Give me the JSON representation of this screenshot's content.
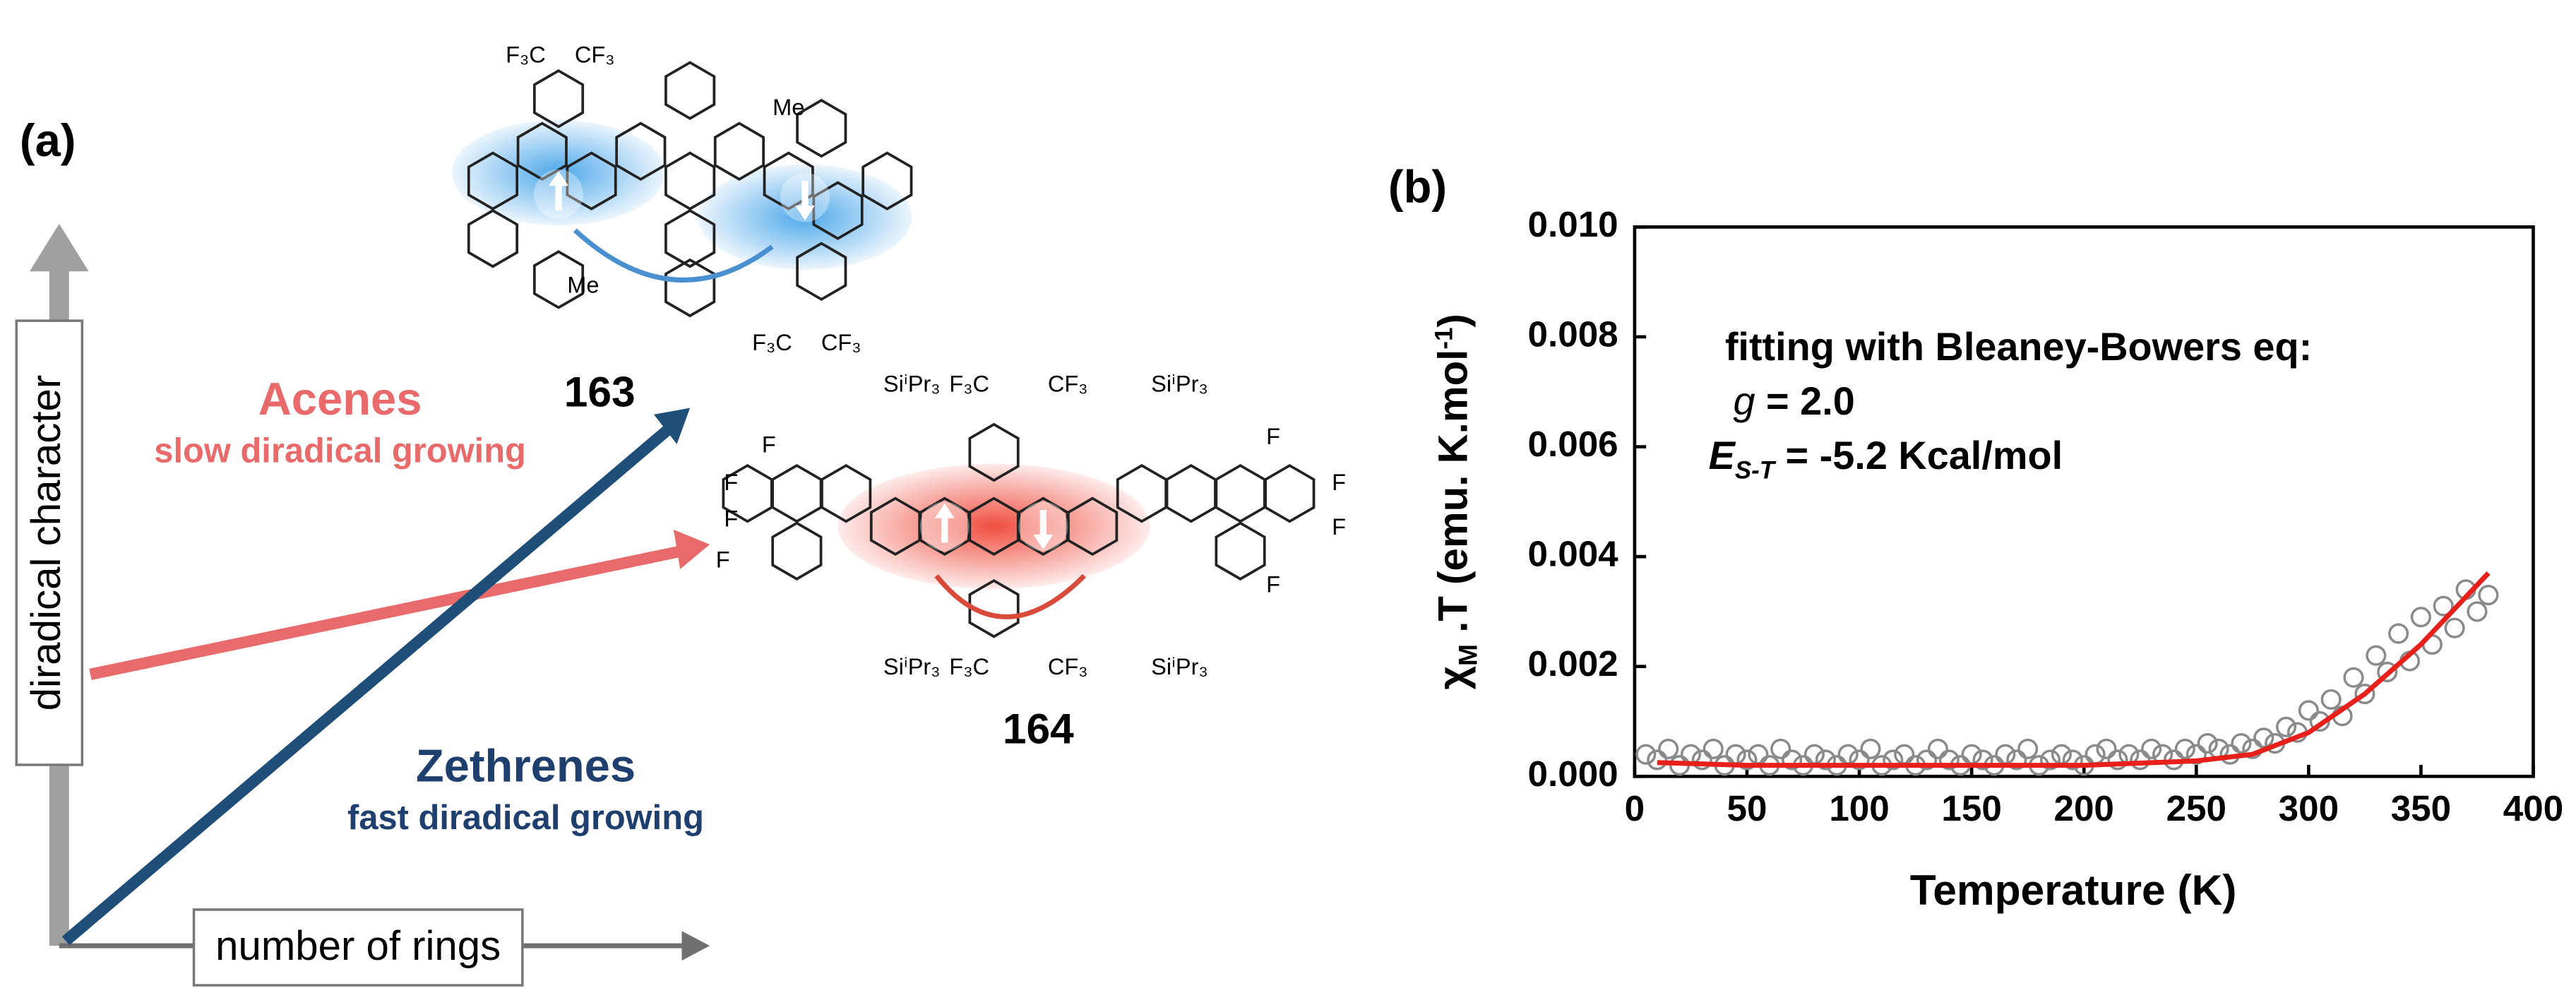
{
  "panel_a": {
    "label": "(a)",
    "y_axis": "diradical character",
    "x_axis": "number of rings",
    "acenes": {
      "title": "Acenes",
      "subtitle": "slow diradical growing"
    },
    "zethrenes": {
      "title": "Zethrenes",
      "subtitle": "fast diradical growing"
    },
    "molecule_163": {
      "number": "163",
      "labels": [
        "F₃C",
        "CF₃",
        "Me",
        "Me",
        "F₃C",
        "CF₃"
      ]
    },
    "molecule_164": {
      "number": "164",
      "labels": [
        "SiⁱPr₃",
        "F₃C",
        "CF₃",
        "SiⁱPr₃",
        "F",
        "F",
        "F",
        "F",
        "F",
        "F",
        "F",
        "F",
        "SiⁱPr₃",
        "F₃C",
        "CF₃",
        "SiⁱPr₃"
      ]
    }
  },
  "panel_b": {
    "label": "(b)",
    "annotation": {
      "line1": "fitting with Bleaney-Bowers eq:",
      "g_symbol": "g",
      "g_value": " = 2.0",
      "e_symbol": "E",
      "e_sub": "S-T",
      "e_value": " = -5.2 Kcal/mol"
    }
  },
  "chart_data": {
    "type": "scatter",
    "xlabel": "Temperature (K)",
    "ylabel": {
      "symbol": "χ",
      "sub": "M",
      "main": " .T (emu. K.mol",
      "sup": "-1",
      "end": ")"
    },
    "xlim": [
      0,
      400
    ],
    "xticks": [
      0,
      50,
      100,
      150,
      200,
      250,
      300,
      350,
      400
    ],
    "ylim": [
      0,
      0.01
    ],
    "yticks": [
      {
        "value": 0,
        "label": "0.000"
      },
      {
        "value": 0.002,
        "label": "0.002"
      },
      {
        "value": 0.004,
        "label": "0.004"
      },
      {
        "value": 0.006,
        "label": "0.006"
      },
      {
        "value": 0.008,
        "label": "0.008"
      },
      {
        "value": 0.01,
        "label": "0.010"
      }
    ],
    "series": [
      {
        "type": "scatter",
        "color": "#8a8a8a",
        "x": [
          5,
          10,
          15,
          20,
          25,
          30,
          35,
          40,
          45,
          50,
          55,
          60,
          65,
          70,
          75,
          80,
          85,
          90,
          95,
          100,
          105,
          110,
          115,
          120,
          125,
          130,
          135,
          140,
          145,
          150,
          155,
          160,
          165,
          170,
          175,
          180,
          185,
          190,
          195,
          200,
          205,
          210,
          215,
          220,
          225,
          230,
          235,
          240,
          245,
          250,
          255,
          260,
          265,
          270,
          275,
          280,
          285,
          290,
          295,
          300,
          305,
          310,
          315,
          320,
          325,
          330,
          335,
          340,
          345,
          350,
          355,
          360,
          365,
          370,
          375,
          380
        ],
        "values": [
          0.0004,
          0.0003,
          0.0005,
          0.0002,
          0.0004,
          0.0003,
          0.0005,
          0.0002,
          0.0004,
          0.0003,
          0.0004,
          0.0002,
          0.0005,
          0.0003,
          0.0002,
          0.0004,
          0.0003,
          0.0002,
          0.0004,
          0.0003,
          0.0005,
          0.0002,
          0.0003,
          0.0004,
          0.0002,
          0.0003,
          0.0005,
          0.0003,
          0.0002,
          0.0004,
          0.0003,
          0.0002,
          0.0004,
          0.0003,
          0.0005,
          0.0002,
          0.0003,
          0.0004,
          0.0003,
          0.0002,
          0.0004,
          0.0005,
          0.0003,
          0.0004,
          0.0003,
          0.0005,
          0.0004,
          0.0003,
          0.0005,
          0.0004,
          0.0006,
          0.0005,
          0.0004,
          0.0006,
          0.0005,
          0.0007,
          0.0006,
          0.0009,
          0.0008,
          0.0012,
          0.001,
          0.0014,
          0.0011,
          0.0018,
          0.0015,
          0.0022,
          0.0019,
          0.0026,
          0.0021,
          0.0029,
          0.0024,
          0.0031,
          0.0027,
          0.0034,
          0.003,
          0.0033
        ]
      },
      {
        "type": "line",
        "color": "#e8201c",
        "x": [
          10,
          50,
          100,
          150,
          200,
          250,
          275,
          300,
          325,
          350,
          380
        ],
        "values": [
          0.00025,
          0.0002,
          0.0002,
          0.0002,
          0.0002,
          0.00028,
          0.0004,
          0.0008,
          0.0015,
          0.0024,
          0.0037
        ]
      }
    ]
  }
}
